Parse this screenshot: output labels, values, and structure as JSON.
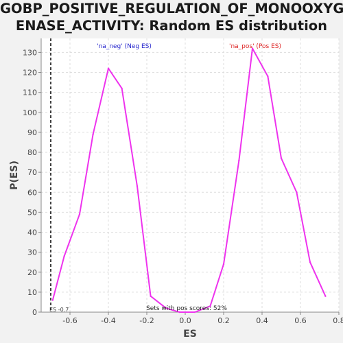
{
  "chart_data": {
    "type": "line",
    "title_lines": [
      "GOBP_POSITIVE_REGULATION_OF_MONOOXYG",
      "ENASE_ACTIVITY: Random ES distribution"
    ],
    "xlabel": "ES",
    "ylabel": "P(ES)",
    "xlim": [
      -0.75,
      0.8
    ],
    "ylim": [
      0,
      137
    ],
    "x_ticks": [
      -0.6,
      -0.4,
      -0.2,
      0.0,
      0.2,
      0.4,
      0.6,
      0.8
    ],
    "x_tick_labels": [
      "-0.6",
      "-0.4",
      "-0.2",
      "0.0",
      "0.2",
      "0.4",
      "0.6",
      "0.8"
    ],
    "y_ticks": [
      0,
      10,
      20,
      30,
      40,
      50,
      60,
      70,
      80,
      90,
      100,
      110,
      120,
      130
    ],
    "y_tick_labels": [
      "0",
      "10",
      "20",
      "30",
      "40",
      "50",
      "60",
      "70",
      "80",
      "90",
      "100",
      "110",
      "120",
      "130"
    ],
    "grid": true,
    "series": [
      {
        "color": "#ee33ee",
        "x": [
          -0.69,
          -0.63,
          -0.55,
          -0.48,
          -0.4,
          -0.33,
          -0.25,
          -0.18,
          -0.1,
          -0.03,
          0.05,
          0.13,
          0.2,
          0.28,
          0.35,
          0.43,
          0.5,
          0.58,
          0.65,
          0.73
        ],
        "y": [
          6,
          28,
          49,
          89,
          122,
          112,
          63,
          8,
          2,
          0,
          0,
          3,
          24,
          76,
          132,
          118,
          77,
          60,
          25,
          8
        ]
      }
    ],
    "annotations": {
      "neg_label": "'na_neg' (Neg ES)",
      "pos_label": "'na_pos' (Pos ES)",
      "neg_color": "#2222cc",
      "pos_color": "#dd2222",
      "es_marker_value": -0.7,
      "es_marker_label": "ES -0.7",
      "footer": "Sets with pos scores: 52%"
    }
  }
}
